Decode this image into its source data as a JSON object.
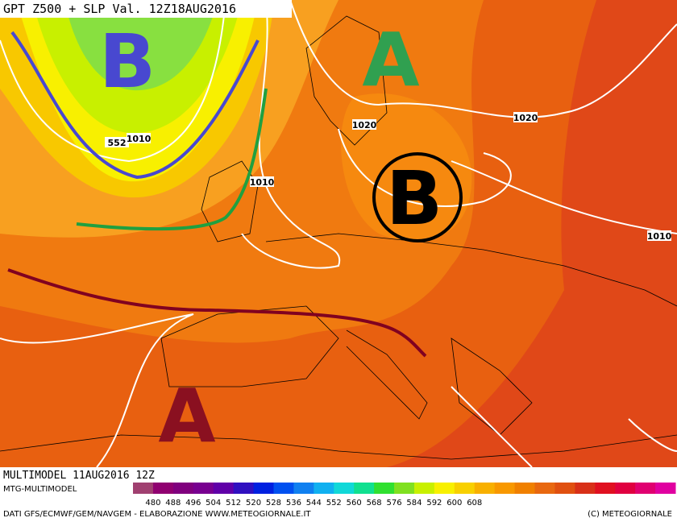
{
  "header": {
    "title": "GPT Z500 + SLP Val. 12Z18AUG2016"
  },
  "centers": [
    "B",
    "A",
    "B",
    "A"
  ],
  "isobar_labels": [
    "552",
    "1010",
    "1010",
    "1020",
    "1020",
    "1010"
  ],
  "footer": {
    "run": "MULTIMODEL 11AUG2016 12Z",
    "model": "MTG-MULTIMODEL",
    "credits": "DATI GFS/ECMWF/GEM/NAVGEM - ELABORAZIONE WWW.METEOGIORNALE.IT",
    "copyright": "(C) METEOGIORNALE"
  },
  "colorbar": {
    "ticks": [
      480,
      488,
      496,
      504,
      512,
      520,
      528,
      536,
      544,
      552,
      560,
      568,
      576,
      584,
      592,
      600,
      608
    ],
    "colors": [
      "#a04070",
      "#900070",
      "#80007e",
      "#780090",
      "#6000a8",
      "#3010c0",
      "#0020e0",
      "#0050f0",
      "#1080f0",
      "#10b0f0",
      "#10d8d8",
      "#10e090",
      "#30e030",
      "#80e020",
      "#c8f000",
      "#f8f000",
      "#f8d000",
      "#f8b000",
      "#f89800",
      "#f08000",
      "#e86810",
      "#e05010",
      "#d83018",
      "#e01020",
      "#e00040",
      "#e00070",
      "#e000a0"
    ]
  }
}
